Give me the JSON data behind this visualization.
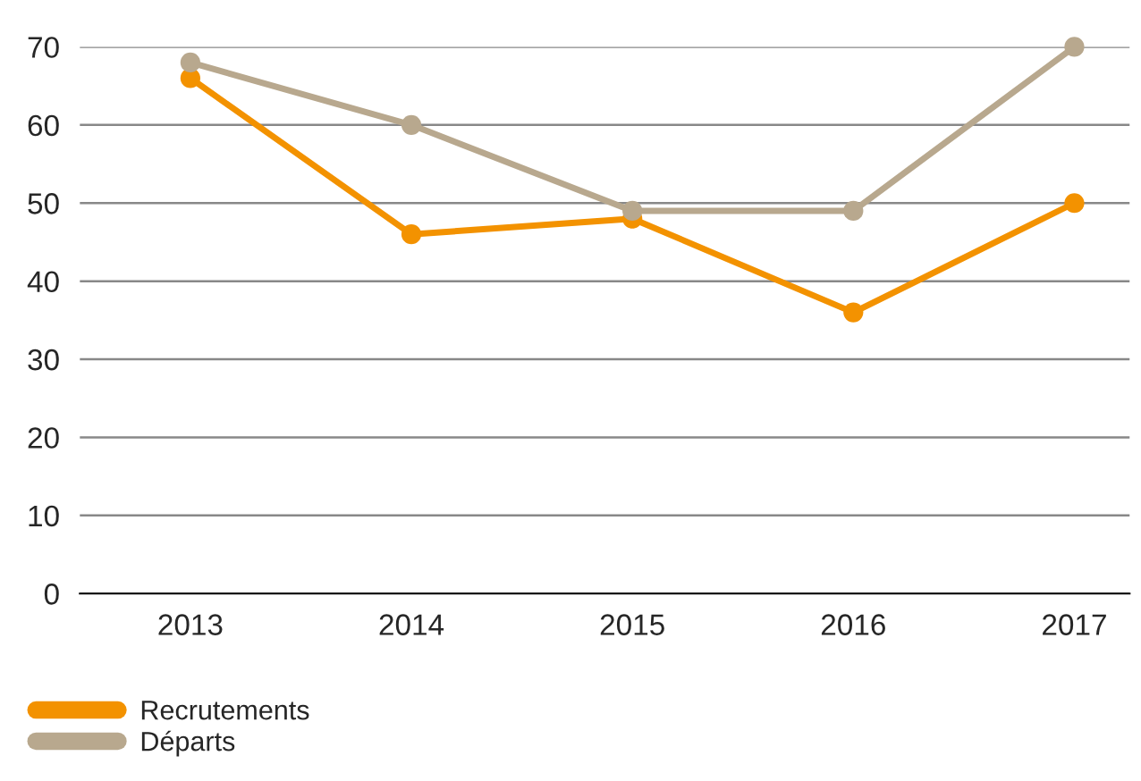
{
  "chart_data": {
    "type": "line",
    "categories": [
      "2013",
      "2014",
      "2015",
      "2016",
      "2017"
    ],
    "series": [
      {
        "name": "Recrutements",
        "color": "#f39200",
        "values": [
          66,
          46,
          48,
          36,
          50
        ]
      },
      {
        "name": "Départs",
        "color": "#b8a88e",
        "values": [
          68,
          60,
          49,
          49,
          70
        ]
      }
    ],
    "ylim": [
      0,
      70
    ],
    "yticks": [
      0,
      10,
      20,
      30,
      40,
      50,
      60,
      70
    ],
    "grid": "y",
    "legend": "bottom left",
    "marker": "circle",
    "line_style": "solid"
  }
}
